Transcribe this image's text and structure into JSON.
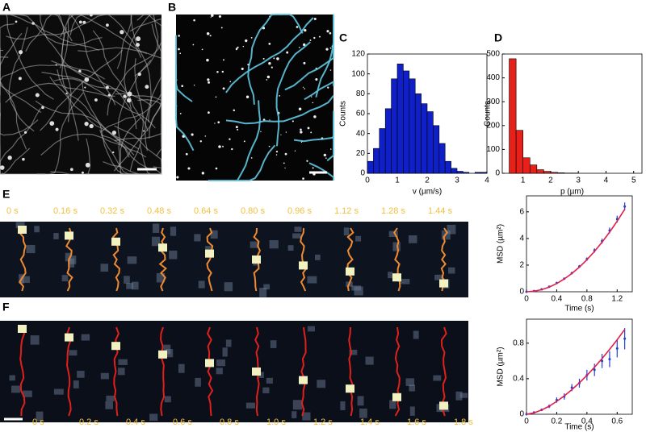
{
  "panel_labels": [
    "A",
    "B",
    "C",
    "D",
    "E",
    "F"
  ],
  "strip_e": {
    "times": [
      "0 s",
      "0.16 s",
      "0.32 s",
      "0.48 s",
      "0.64 s",
      "0.80 s",
      "0.96 s",
      "1.12 s",
      "1.28 s",
      "1.44 s"
    ]
  },
  "strip_f": {
    "times": [
      "0 s",
      "0.2 s",
      "0.4 s",
      "0.6 s",
      "0.8 s",
      "1.0 s",
      "1.2 s",
      "1.4 s",
      "1.6 s",
      "1.8 s"
    ]
  },
  "chart_data": [
    {
      "type": "histogram",
      "xlabel": "v (µm/s)",
      "ylabel": "Counts",
      "color": "#1020c8",
      "bins": [
        0,
        0.2,
        0.4,
        0.6,
        0.8,
        1.0,
        1.2,
        1.4,
        1.6,
        1.8,
        2.0,
        2.2,
        2.4,
        2.6,
        2.8,
        3.0,
        3.2,
        3.4,
        3.6,
        3.8,
        4.0
      ],
      "counts": [
        12,
        25,
        45,
        65,
        95,
        110,
        103,
        95,
        80,
        70,
        62,
        48,
        30,
        12,
        5,
        2,
        1,
        0,
        1,
        1
      ],
      "xlim": [
        0,
        4
      ],
      "xticks": [
        0,
        1,
        2,
        3,
        4
      ],
      "ylim": [
        0,
        120
      ],
      "yticks": [
        0,
        20,
        40,
        60,
        80,
        100,
        120
      ]
    },
    {
      "type": "histogram",
      "xlabel": "p (µm)",
      "ylabel": "Counts",
      "color": "#e8201a",
      "bins": [
        0.5,
        0.75,
        1.0,
        1.25,
        1.5,
        1.75,
        2.0,
        2.25,
        2.5,
        2.75,
        3.0
      ],
      "counts": [
        480,
        180,
        65,
        35,
        15,
        8,
        4,
        2,
        1,
        1
      ],
      "xlim": [
        0.25,
        5.3
      ],
      "xticks": [
        1,
        2,
        3,
        4,
        5
      ],
      "ylim": [
        0,
        500
      ],
      "yticks": [
        0,
        100,
        200,
        300,
        400,
        500
      ]
    },
    {
      "type": "line",
      "xlabel": "Time (s)",
      "ylabel": "MSD (µm²)",
      "x": [
        0,
        0.1,
        0.2,
        0.3,
        0.4,
        0.5,
        0.6,
        0.7,
        0.8,
        0.9,
        1.0,
        1.1,
        1.2,
        1.3
      ],
      "series": [
        {
          "color": "#2040d0",
          "values": [
            0,
            0.05,
            0.18,
            0.38,
            0.66,
            0.98,
            1.4,
            1.9,
            2.45,
            3.1,
            3.8,
            4.6,
            5.45,
            6.4
          ],
          "errors": [
            0,
            0.01,
            0.02,
            0.03,
            0.05,
            0.07,
            0.09,
            0.11,
            0.13,
            0.16,
            0.19,
            0.22,
            0.26,
            0.3
          ]
        },
        {
          "color": "#e0204a",
          "values": [
            0,
            0.04,
            0.16,
            0.35,
            0.62,
            0.96,
            1.37,
            1.85,
            2.41,
            3.03,
            3.72,
            4.48,
            5.3,
            6.19
          ]
        }
      ],
      "xlim": [
        0,
        1.4
      ],
      "xticks": [
        0,
        0.4,
        0.8,
        1.2
      ],
      "ylim": [
        0,
        7.2
      ],
      "yticks": [
        0,
        2,
        4,
        6
      ]
    },
    {
      "type": "line",
      "xlabel": "Time (s)",
      "ylabel": "MSD (µm²)",
      "x": [
        0,
        0.05,
        0.1,
        0.15,
        0.2,
        0.25,
        0.3,
        0.35,
        0.4,
        0.45,
        0.5,
        0.55,
        0.6,
        0.65
      ],
      "series": [
        {
          "color": "#2040d0",
          "values": [
            0,
            0.02,
            0.05,
            0.09,
            0.16,
            0.2,
            0.3,
            0.35,
            0.44,
            0.5,
            0.6,
            0.62,
            0.74,
            0.85
          ],
          "errors": [
            0,
            0.01,
            0.015,
            0.02,
            0.03,
            0.035,
            0.04,
            0.05,
            0.06,
            0.07,
            0.08,
            0.09,
            0.1,
            0.12
          ]
        },
        {
          "color": "#e0204a",
          "values": [
            0,
            0.016,
            0.048,
            0.091,
            0.145,
            0.207,
            0.277,
            0.354,
            0.438,
            0.529,
            0.627,
            0.73,
            0.839,
            0.954
          ]
        }
      ],
      "xlim": [
        0,
        0.7
      ],
      "xticks": [
        0,
        0.2,
        0.4,
        0.6
      ],
      "ylim": [
        0,
        1.07
      ],
      "yticks": [
        0,
        0.4,
        0.8
      ]
    }
  ]
}
